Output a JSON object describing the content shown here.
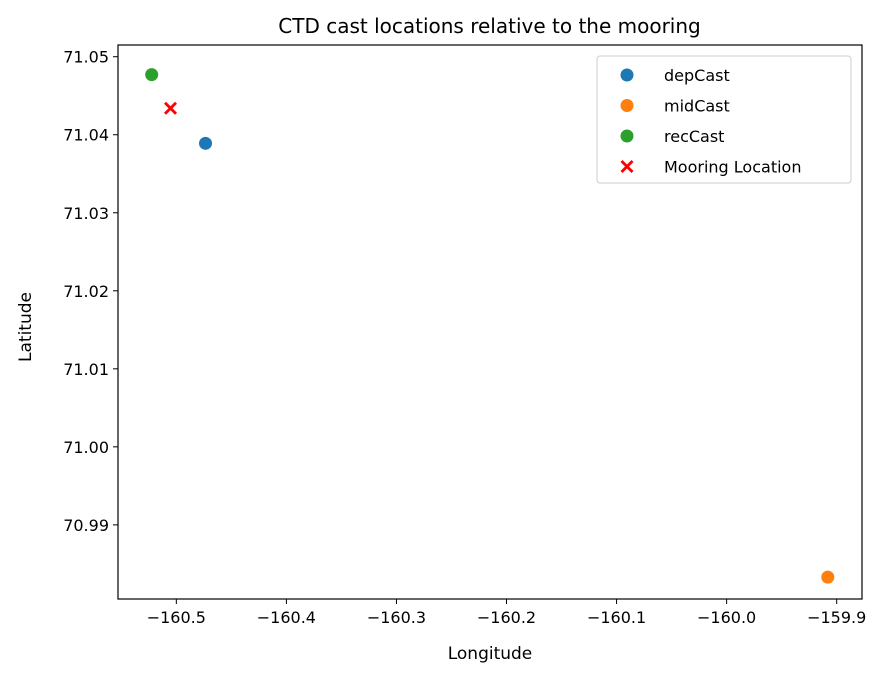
{
  "chart_data": {
    "type": "scatter",
    "title": "CTD cast locations relative to the mooring",
    "xlabel": "Longitude",
    "ylabel": "Latitude",
    "xlim": [
      -160.553,
      -159.877
    ],
    "ylim": [
      70.9805,
      71.0515
    ],
    "x_ticks": [
      -160.5,
      -160.4,
      -160.3,
      -160.2,
      -160.1,
      -160.0,
      -159.9
    ],
    "x_tick_labels": [
      "−160.5",
      "−160.4",
      "−160.3",
      "−160.2",
      "−160.1",
      "−160.0",
      "−159.9"
    ],
    "y_ticks": [
      70.99,
      71.0,
      71.01,
      71.02,
      71.03,
      71.04,
      71.05
    ],
    "y_tick_labels": [
      "70.99",
      "71.00",
      "71.01",
      "71.02",
      "71.03",
      "71.04",
      "71.05"
    ],
    "grid": false,
    "legend_position": "top-right",
    "series": [
      {
        "name": "depCast",
        "marker": "circle",
        "color": "#1f77b4",
        "points": [
          {
            "x": -160.4735,
            "y": 71.0389
          }
        ]
      },
      {
        "name": "midCast",
        "marker": "circle",
        "color": "#ff7f0e",
        "points": [
          {
            "x": -159.9081,
            "y": 70.9833
          }
        ]
      },
      {
        "name": "recCast",
        "marker": "circle",
        "color": "#2ca02c",
        "points": [
          {
            "x": -160.5224,
            "y": 71.0477
          }
        ]
      },
      {
        "name": "Mooring Location",
        "marker": "x",
        "color": "#ff0000",
        "points": [
          {
            "x": -160.5053,
            "y": 71.0434
          }
        ]
      }
    ]
  }
}
